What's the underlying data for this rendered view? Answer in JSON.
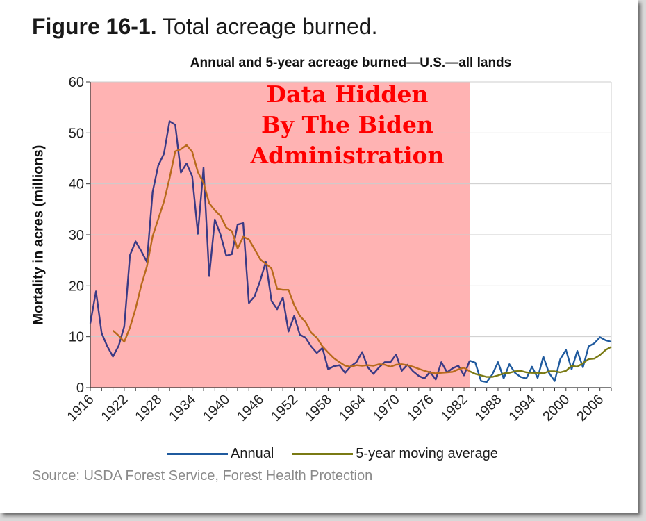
{
  "figure": {
    "number": "Figure 16-1.",
    "caption": "Total acreage burned."
  },
  "overlay": {
    "lines": [
      "Data Hidden",
      "By The Biden",
      "Administration"
    ],
    "text_color": "#ff0000",
    "highlight_color": "#ffb3b3",
    "highlight_x_range": [
      1916,
      1983
    ]
  },
  "source": "Source: USDA Forest Service, Forest Health Protection",
  "colors": {
    "annual": "#3a3a85",
    "annual_after_highlight": "#1f5a9e",
    "moving_average": "#b86a1c",
    "moving_average_after_highlight": "#7a7a14",
    "grid": "#cccccc"
  },
  "chart_data": {
    "type": "line",
    "title": "Annual and 5-year acreage burned—U.S.—all lands",
    "xlabel": "",
    "ylabel": "Mortality in acres (millions)",
    "xlim": [
      1916,
      2008
    ],
    "ylim": [
      0,
      60
    ],
    "yticks": [
      0,
      10,
      20,
      30,
      40,
      50,
      60
    ],
    "xticks": [
      1916,
      1922,
      1928,
      1934,
      1940,
      1946,
      1952,
      1958,
      1964,
      1970,
      1976,
      1982,
      1988,
      1994,
      2000,
      2006
    ],
    "grid": true,
    "legend_position": "bottom",
    "series": [
      {
        "name": "Annual",
        "x": [
          1916,
          1917,
          1918,
          1919,
          1920,
          1921,
          1922,
          1923,
          1924,
          1925,
          1926,
          1927,
          1928,
          1929,
          1930,
          1931,
          1932,
          1933,
          1934,
          1935,
          1936,
          1937,
          1938,
          1939,
          1940,
          1941,
          1942,
          1943,
          1944,
          1945,
          1946,
          1947,
          1948,
          1949,
          1950,
          1951,
          1952,
          1953,
          1954,
          1955,
          1956,
          1957,
          1958,
          1959,
          1960,
          1961,
          1962,
          1963,
          1964,
          1965,
          1966,
          1967,
          1968,
          1969,
          1970,
          1971,
          1972,
          1973,
          1974,
          1975,
          1976,
          1977,
          1978,
          1979,
          1980,
          1981,
          1982,
          1983,
          1984,
          1985,
          1986,
          1987,
          1988,
          1989,
          1990,
          1991,
          1992,
          1993,
          1994,
          1995,
          1996,
          1997,
          1998,
          1999,
          2000,
          2001,
          2002,
          2003,
          2004,
          2005,
          2006,
          2007,
          2008
        ],
        "values": [
          12.6,
          18.9,
          10.7,
          8.1,
          6.1,
          8.2,
          12,
          26,
          28.7,
          26.8,
          24.7,
          38.4,
          43.6,
          45.9,
          52.3,
          51.6,
          42.2,
          44,
          41.5,
          30.2,
          43.2,
          21.9,
          33,
          30,
          25.9,
          26.2,
          32,
          32.3,
          16.6,
          17.9,
          21,
          24.7,
          17,
          15.4,
          17.7,
          11,
          14.1,
          10.4,
          9.8,
          8.1,
          6.8,
          7.8,
          3.6,
          4.2,
          4.4,
          2.9,
          4.2,
          5,
          7,
          4,
          2.7,
          4,
          5,
          5,
          6.5,
          3.3,
          4.5,
          3.2,
          2.3,
          1.8,
          3.1,
          1.6,
          5,
          3,
          3.8,
          4.3,
          2.4,
          5.3,
          4.9,
          1.3,
          1.1,
          2.6,
          5,
          1.8,
          4.6,
          2.9,
          2.1,
          1.8,
          4.1,
          1.9,
          6.1,
          2.9,
          1.3,
          5.6,
          7.4,
          3.6,
          7.2,
          4,
          8.1,
          8.7,
          9.9,
          9.3,
          9.0
        ]
      },
      {
        "name": "5-year moving average",
        "x": [
          1920,
          1921,
          1922,
          1923,
          1924,
          1925,
          1926,
          1927,
          1928,
          1929,
          1930,
          1931,
          1932,
          1933,
          1934,
          1935,
          1936,
          1937,
          1938,
          1939,
          1940,
          1941,
          1942,
          1943,
          1944,
          1945,
          1946,
          1947,
          1948,
          1949,
          1950,
          1951,
          1952,
          1953,
          1954,
          1955,
          1956,
          1957,
          1958,
          1959,
          1960,
          1961,
          1962,
          1963,
          1964,
          1965,
          1966,
          1967,
          1968,
          1969,
          1970,
          1971,
          1972,
          1973,
          1974,
          1975,
          1976,
          1977,
          1978,
          1979,
          1980,
          1981,
          1982,
          1983,
          1984,
          1985,
          1986,
          1987,
          1988,
          1989,
          1990,
          1991,
          1992,
          1993,
          1994,
          1995,
          1996,
          1997,
          1998,
          1999,
          2000,
          2001,
          2002,
          2003,
          2004,
          2005,
          2006,
          2007,
          2008
        ],
        "values": [
          11.2,
          10.2,
          9,
          11.8,
          15.5,
          20.1,
          23.8,
          29.7,
          33.1,
          36.5,
          41.1,
          46.4,
          46.8,
          47.6,
          46.3,
          42.3,
          40.2,
          36.2,
          34.8,
          33.7,
          31.4,
          30.7,
          27.3,
          29.6,
          29.1,
          27.2,
          25.2,
          24.3,
          23.4,
          19.4,
          19.2,
          19.2,
          16.2,
          14.1,
          12.9,
          10.8,
          9.8,
          8.1,
          6.9,
          5.8,
          5,
          4.3,
          4.1,
          4.4,
          4.3,
          4.4,
          4.3,
          4.6,
          4.5,
          4.1,
          4.5,
          4.6,
          4.4,
          4.1,
          3.7,
          3.3,
          3,
          2.8,
          2.9,
          3,
          3.1,
          3.6,
          3.9,
          3.2,
          2.7,
          2.4,
          2.1,
          2.1,
          2.4,
          2.8,
          2.9,
          3.2,
          3.3,
          3,
          2.9,
          2.9,
          2.8,
          3.2,
          3.2,
          3,
          3.3,
          4.3,
          4.1,
          4.8,
          5.6,
          5.7,
          6.4,
          7.4,
          8
        ]
      }
    ]
  }
}
